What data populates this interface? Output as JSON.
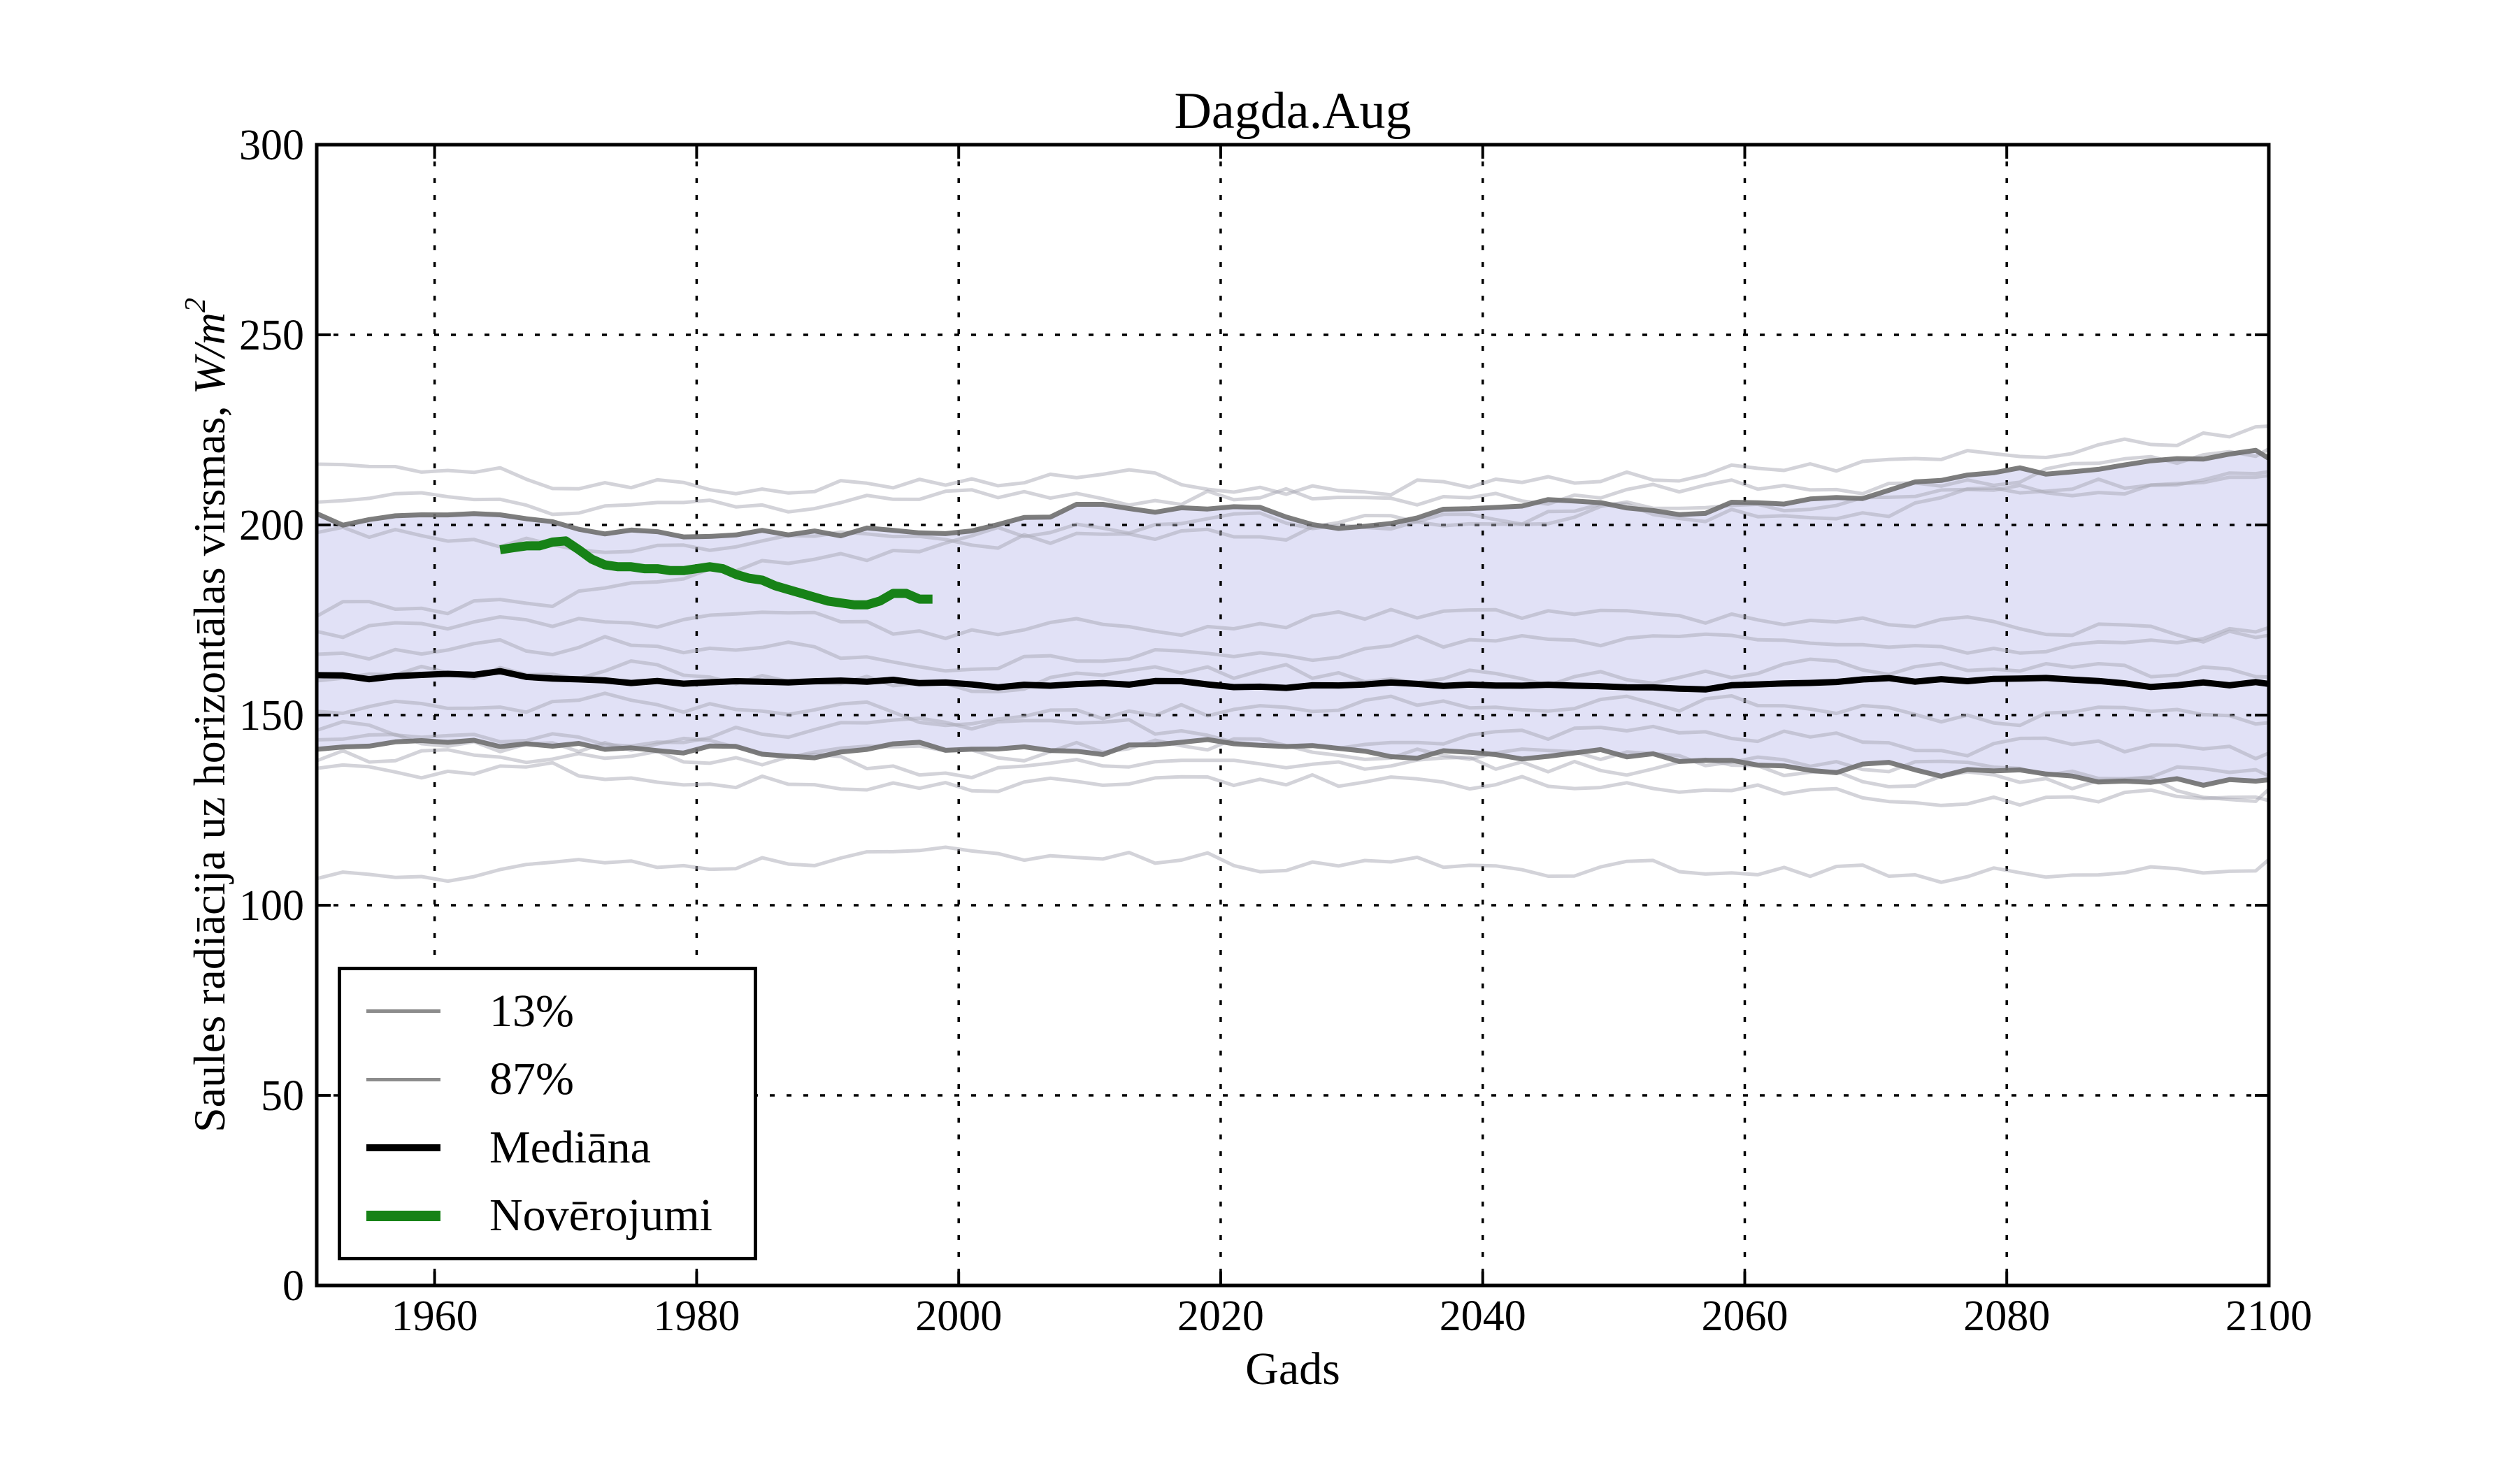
{
  "figure": {
    "title": "Dagda.Aug",
    "xlabel": "Gads",
    "ylabel_prefix": "Saules radiācija uz horizontālas virsmas, ",
    "ylabel_math": "W/m",
    "ylabel_sup": "2"
  },
  "legend": {
    "items": [
      {
        "label": "13%",
        "color": "#8c8c8c",
        "weight": 5
      },
      {
        "label": "87%",
        "color": "#8c8c8c",
        "weight": 5
      },
      {
        "label": "Mediāna",
        "color": "#000000",
        "weight": 10
      },
      {
        "label": "Novērojumi",
        "color": "#178217",
        "weight": 15
      }
    ]
  },
  "chart_data": {
    "type": "line",
    "title": "Dagda.Aug",
    "xlabel": "Gads",
    "ylabel": "Saules radiācija uz horizontālas virsmas, W/m²",
    "xlim": [
      1951,
      2100
    ],
    "ylim": [
      0,
      300
    ],
    "xticks": [
      1960,
      1980,
      2000,
      2020,
      2040,
      2060,
      2080,
      2100
    ],
    "yticks": [
      0,
      50,
      100,
      150,
      200,
      250,
      300
    ],
    "grid": "dotted",
    "legend_position": "lower left",
    "band_fill": "#e1e1f6",
    "axis_color": "#000000",
    "series": [
      {
        "name": "87%",
        "role": "percentile-upper-band-edge",
        "color": "#6f6f6f",
        "width": 7,
        "years": [
          1951,
          1955,
          1960,
          1965,
          1970,
          1975,
          1980,
          1985,
          1990,
          1995,
          2000,
          2005,
          2010,
          2015,
          2020,
          2025,
          2030,
          2035,
          2040,
          2045,
          2050,
          2055,
          2060,
          2065,
          2070,
          2075,
          2080,
          2085,
          2090,
          2095,
          2100
        ],
        "values": [
          203,
          201,
          202.5,
          203.5,
          199.5,
          198.5,
          197.5,
          199,
          197,
          199,
          199.5,
          201.5,
          205.5,
          202.5,
          203,
          202.5,
          199.5,
          204,
          205,
          205.5,
          204.5,
          204,
          206,
          207,
          209,
          211,
          213,
          214,
          214.5,
          216,
          217.5
        ]
      },
      {
        "name": "13%",
        "role": "percentile-lower-band-edge",
        "color": "#6f6f6f",
        "width": 7,
        "years": [
          1951,
          1955,
          1960,
          1965,
          1970,
          1975,
          1980,
          1985,
          1990,
          1995,
          2000,
          2005,
          2010,
          2015,
          2020,
          2025,
          2030,
          2035,
          2040,
          2045,
          2050,
          2055,
          2060,
          2065,
          2070,
          2075,
          2080,
          2085,
          2090,
          2095,
          2100
        ],
        "values": [
          141,
          142.5,
          143,
          142,
          143.5,
          142,
          141.5,
          140.5,
          141,
          142,
          141.5,
          142,
          140.5,
          142.5,
          142,
          140.5,
          141.5,
          140,
          139.5,
          140,
          139,
          138.5,
          138,
          137,
          136.5,
          135.5,
          134.5,
          134,
          133.5,
          133,
          133
        ]
      },
      {
        "name": "Mediāna",
        "role": "median",
        "color": "#000000",
        "width": 9,
        "years": [
          1951,
          1955,
          1960,
          1965,
          1970,
          1975,
          1980,
          1985,
          1990,
          1995,
          2000,
          2005,
          2010,
          2015,
          2020,
          2025,
          2030,
          2035,
          2040,
          2045,
          2050,
          2055,
          2060,
          2065,
          2070,
          2075,
          2080,
          2085,
          2090,
          2095,
          2100
        ],
        "values": [
          160.5,
          159.8,
          160.2,
          161,
          159.2,
          158.6,
          158.2,
          158.8,
          158.2,
          158.6,
          158.3,
          157.8,
          158.4,
          158.8,
          158.2,
          157.6,
          158.2,
          157.8,
          158.2,
          157.6,
          157.2,
          156.8,
          157.6,
          158.2,
          158.6,
          159.2,
          159.6,
          158.6,
          157.2,
          157.8,
          158.2
        ]
      },
      {
        "name": "Novērojumi",
        "role": "observations",
        "color": "#178217",
        "width": 13,
        "years": [
          1965,
          1966,
          1967,
          1968,
          1969,
          1970,
          1971,
          1972,
          1973,
          1974,
          1975,
          1976,
          1977,
          1978,
          1979,
          1980,
          1981,
          1982,
          1983,
          1984,
          1985,
          1986,
          1987,
          1988,
          1989,
          1990,
          1991,
          1992,
          1993,
          1994,
          1995,
          1996,
          1997,
          1998
        ],
        "values": [
          193.5,
          194,
          194.5,
          194.5,
          195.5,
          195.8,
          193.5,
          191,
          189.5,
          189,
          189,
          188.5,
          188.5,
          188,
          188,
          188.5,
          189,
          188.5,
          187,
          186,
          185.5,
          184,
          183,
          182,
          181,
          180,
          179.5,
          179,
          179,
          180,
          182,
          182,
          180.5,
          180.5
        ]
      }
    ],
    "ensemble": {
      "role": "climate-model-members",
      "color": "#a8a8b4",
      "opacity": 0.5,
      "width": 5,
      "anchor_years": [
        1951,
        1975,
        2000,
        2025,
        2050,
        2075,
        2100
      ],
      "lines": [
        [
          216,
          210,
          213,
          211,
          212,
          217,
          226
        ],
        [
          206,
          203,
          207,
          208,
          207,
          211,
          220
        ],
        [
          198,
          196,
          196,
          199,
          204,
          208,
          213
        ],
        [
          176,
          183,
          196,
          201,
          203,
          206,
          214
        ],
        [
          172,
          174,
          172,
          175,
          177,
          174,
          171
        ],
        [
          166,
          169,
          164,
          167,
          171,
          168,
          173
        ],
        [
          159,
          163,
          158,
          161,
          159,
          163,
          160
        ],
        [
          151,
          154,
          149,
          152,
          154,
          151,
          148
        ],
        [
          146,
          144,
          147.5,
          144,
          146,
          143,
          140
        ],
        [
          143.5,
          141,
          140,
          142.5,
          139.5,
          137,
          134
        ],
        [
          138,
          139.5,
          136,
          138.5,
          136,
          133,
          130.5
        ],
        [
          136,
          134,
          131.5,
          133,
          131,
          129.5,
          127.5
        ],
        [
          107,
          110,
          112,
          111,
          110,
          108.5,
          112
        ]
      ],
      "noise_amp": 2.3,
      "seeds": [
        101,
        102,
        103,
        104,
        105,
        106,
        107,
        108,
        109,
        110,
        111,
        112,
        113
      ]
    },
    "band": {
      "upper": "87%",
      "lower": "13%",
      "fill": "#e1e1f6"
    },
    "style": {
      "percentile_noise_amp": 1.5,
      "median_noise_amp": 0.7,
      "percentile_seed_upper": 7,
      "percentile_seed_lower": 8,
      "median_seed": 9
    }
  }
}
